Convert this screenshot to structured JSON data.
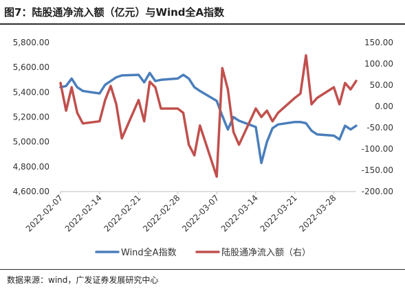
{
  "title": "图7：陆股通净流入额（亿元）与Wind全A指数",
  "source": "数据来源：wind，广发证券发展研究中心",
  "chart_data": {
    "type": "line",
    "x_ticks": [
      "2022-02-07",
      "2022-02-14",
      "2022-02-21",
      "2022-02-28",
      "2022-03-07",
      "2022-03-14",
      "2022-03-21",
      "2022-03-28"
    ],
    "left_axis": {
      "ylim": [
        4600,
        5800
      ],
      "ticks": [
        "4,600.00",
        "4,800.00",
        "5,000.00",
        "5,200.00",
        "5,400.00",
        "5,600.00",
        "5,800.00"
      ]
    },
    "right_axis": {
      "ylim": [
        -200,
        150
      ],
      "ticks": [
        "-200.00",
        "-150.00",
        "-100.00",
        "-50.00",
        "0.00",
        "50.00",
        "100.00",
        "150.00"
      ]
    },
    "series": [
      {
        "name": "Wind全A指数",
        "axis": "left",
        "color": "#4a7ebb",
        "x": [
          "2022-02-07",
          "2022-02-08",
          "2022-02-09",
          "2022-02-10",
          "2022-02-11",
          "2022-02-14",
          "2022-02-15",
          "2022-02-16",
          "2022-02-17",
          "2022-02-18",
          "2022-02-21",
          "2022-02-22",
          "2022-02-23",
          "2022-02-24",
          "2022-02-25",
          "2022-02-28",
          "2022-03-01",
          "2022-03-02",
          "2022-03-03",
          "2022-03-04",
          "2022-03-07",
          "2022-03-08",
          "2022-03-09",
          "2022-03-10",
          "2022-03-11",
          "2022-03-14",
          "2022-03-15",
          "2022-03-16",
          "2022-03-17",
          "2022-03-18",
          "2022-03-21",
          "2022-03-22",
          "2022-03-23",
          "2022-03-24",
          "2022-03-25",
          "2022-03-28",
          "2022-03-29",
          "2022-03-30",
          "2022-03-31",
          "2022-04-01"
        ],
        "values": [
          5440,
          5450,
          5510,
          5440,
          5410,
          5390,
          5460,
          5490,
          5520,
          5535,
          5540,
          5480,
          5555,
          5490,
          5500,
          5510,
          5540,
          5510,
          5440,
          5410,
          5330,
          5210,
          5100,
          5200,
          5170,
          5120,
          4830,
          5000,
          5110,
          5140,
          5160,
          5160,
          5150,
          5090,
          5060,
          5050,
          5020,
          5130,
          5100,
          5130
        ]
      },
      {
        "name": "陆股通净流入额（右）",
        "axis": "right",
        "color": "#c0504d",
        "x": [
          "2022-02-07",
          "2022-02-08",
          "2022-02-09",
          "2022-02-10",
          "2022-02-11",
          "2022-02-14",
          "2022-02-15",
          "2022-02-16",
          "2022-02-17",
          "2022-02-18",
          "2022-02-21",
          "2022-02-22",
          "2022-02-23",
          "2022-02-24",
          "2022-02-25",
          "2022-02-28",
          "2022-03-01",
          "2022-03-02",
          "2022-03-03",
          "2022-03-04",
          "2022-03-07",
          "2022-03-08",
          "2022-03-09",
          "2022-03-10",
          "2022-03-11",
          "2022-03-14",
          "2022-03-15",
          "2022-03-16",
          "2022-03-17",
          "2022-03-18",
          "2022-03-21",
          "2022-03-22",
          "2022-03-23",
          "2022-03-24",
          "2022-03-25",
          "2022-03-28",
          "2022-03-29",
          "2022-03-30",
          "2022-03-31",
          "2022-04-01"
        ],
        "values": [
          55,
          -10,
          45,
          -15,
          -40,
          -35,
          15,
          48,
          5,
          -75,
          15,
          -35,
          58,
          45,
          -5,
          -5,
          -15,
          -90,
          -115,
          -45,
          -165,
          90,
          40,
          -60,
          -90,
          -5,
          -25,
          -10,
          -35,
          -15,
          20,
          30,
          120,
          5,
          20,
          45,
          5,
          55,
          40,
          60
        ]
      }
    ],
    "legend_position": "bottom",
    "grid": false
  }
}
